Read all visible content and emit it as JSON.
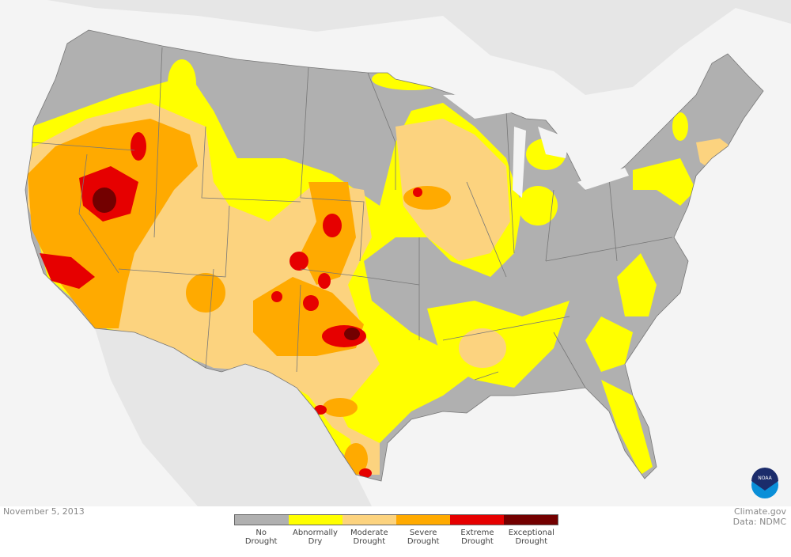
{
  "date": "November 5, 2013",
  "credit": {
    "line1": "Climate.gov",
    "line2": "Data: NDMC"
  },
  "logo": {
    "text": "NOAA"
  },
  "legend": [
    {
      "line1": "No",
      "line2": "Drought",
      "color": "#b0b0b0"
    },
    {
      "line1": "Abnormally",
      "line2": "Dry",
      "color": "#ffff00"
    },
    {
      "line1": "Moderate",
      "line2": "Drought",
      "color": "#fcd37f"
    },
    {
      "line1": "Severe",
      "line2": "Drought",
      "color": "#ffaa00"
    },
    {
      "line1": "Extreme",
      "line2": "Drought",
      "color": "#e60000"
    },
    {
      "line1": "Exceptional",
      "line2": "Drought",
      "color": "#730000"
    }
  ]
}
